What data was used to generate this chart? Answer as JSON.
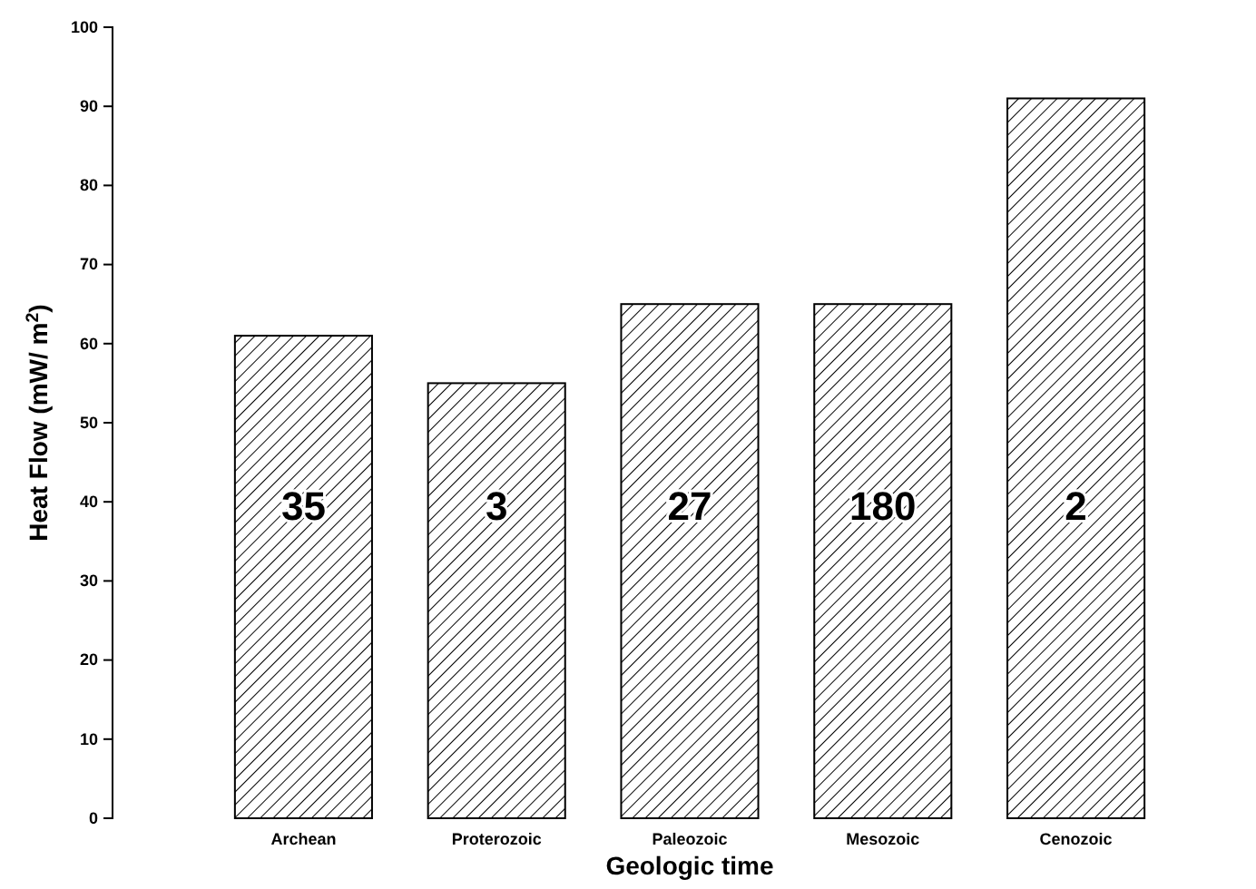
{
  "chart_data": {
    "type": "bar",
    "xlabel": "Geologic time",
    "ylabel": "Heat Flow (mW/ m$^{2}$)",
    "categories": [
      "Archean",
      "Proterozoic",
      "Paleozoic",
      "Mesozoic",
      "Cenozoic"
    ],
    "values": [
      61,
      55,
      65,
      65,
      91
    ],
    "color": "#000000",
    "ylim": [
      0,
      100
    ],
    "yticks": [
      0,
      10,
      20,
      30,
      40,
      50,
      60,
      70,
      80,
      90,
      100
    ],
    "grid": false,
    "annotations": [
      "35",
      "3",
      "27",
      "180",
      "2"
    ]
  }
}
